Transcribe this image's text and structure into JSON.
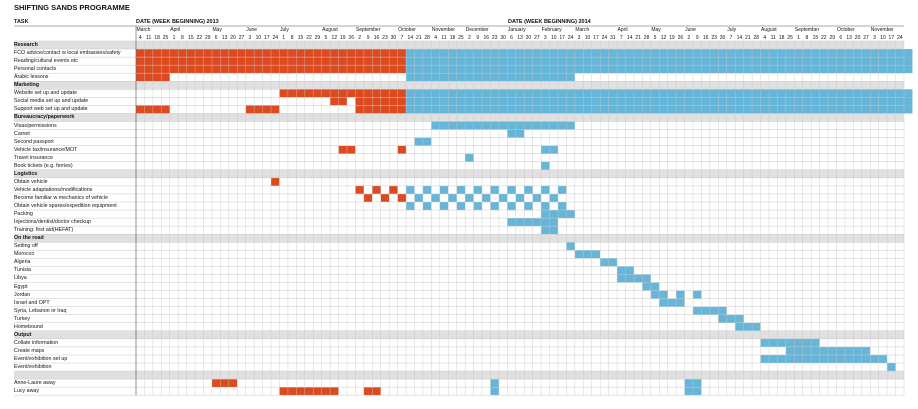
{
  "title": "SHIFTING SANDS PROGRAMME",
  "task_header": "TASK",
  "year_headers": [
    "DATE (WEEK BEGINNING) 2013",
    "DATE (WEEK BEGINNING) 2014"
  ],
  "colors": {
    "y2013": "#dd4a1f",
    "y2014": "#66b6d9",
    "section_bg": "#e0e0e0",
    "grid": "#c8c8c8"
  },
  "chart_data": {
    "type": "gantt",
    "months": [
      {
        "name": "March",
        "weeks": [
          "4",
          "11",
          "18",
          "25"
        ]
      },
      {
        "name": "April",
        "weeks": [
          "1",
          "8",
          "15",
          "22",
          "29"
        ]
      },
      {
        "name": "May",
        "weeks": [
          "6",
          "13",
          "20",
          "27"
        ]
      },
      {
        "name": "June",
        "weeks": [
          "3",
          "10",
          "17",
          "24"
        ]
      },
      {
        "name": "July",
        "weeks": [
          "1",
          "8",
          "15",
          "22",
          "29"
        ]
      },
      {
        "name": "August",
        "weeks": [
          "5",
          "12",
          "19",
          "26"
        ]
      },
      {
        "name": "September",
        "weeks": [
          "2",
          "9",
          "16",
          "23",
          "30"
        ]
      },
      {
        "name": "October",
        "weeks": [
          "7",
          "14",
          "21",
          "28"
        ]
      },
      {
        "name": "November",
        "weeks": [
          "4",
          "11",
          "18",
          "25"
        ]
      },
      {
        "name": "December",
        "weeks": [
          "2",
          "9",
          "16",
          "23",
          "30"
        ]
      },
      {
        "name": "January",
        "weeks": [
          "6",
          "13",
          "20",
          "27"
        ]
      },
      {
        "name": "February",
        "weeks": [
          "3",
          "10",
          "17",
          "24"
        ]
      },
      {
        "name": "March",
        "weeks": [
          "3",
          "10",
          "17",
          "24",
          "31"
        ]
      },
      {
        "name": "April",
        "weeks": [
          "7",
          "14",
          "21",
          "28"
        ]
      },
      {
        "name": "May",
        "weeks": [
          "5",
          "12",
          "19",
          "26"
        ]
      },
      {
        "name": "June",
        "weeks": [
          "2",
          "9",
          "16",
          "23",
          "30"
        ]
      },
      {
        "name": "July",
        "weeks": [
          "7",
          "14",
          "21",
          "28"
        ]
      },
      {
        "name": "August",
        "weeks": [
          "4",
          "11",
          "18",
          "25"
        ]
      },
      {
        "name": "September",
        "weeks": [
          "1",
          "8",
          "15",
          "22",
          "29"
        ]
      },
      {
        "name": "October",
        "weeks": [
          "6",
          "13",
          "20",
          "27"
        ]
      },
      {
        "name": "November",
        "weeks": [
          "3",
          "10",
          "17",
          "24"
        ]
      }
    ],
    "year_split_week_index": 32,
    "sections": [
      {
        "name": "Research",
        "tasks": [
          {
            "name": "FCO advice/contact w local embassies/safety",
            "bars": [
              [
                0,
                92
              ]
            ]
          },
          {
            "name": "Reading/cultural events etc",
            "bars": [
              [
                0,
                92
              ]
            ]
          },
          {
            "name": "Personal contacts",
            "bars": [
              [
                0,
                92
              ]
            ]
          },
          {
            "name": "Arabic lessons",
            "bars": [
              [
                0,
                4
              ],
              [
                32,
                52
              ]
            ]
          }
        ]
      },
      {
        "name": "Marketing",
        "tasks": [
          {
            "name": "Website set up and update",
            "bars": [
              [
                17,
                92
              ]
            ]
          },
          {
            "name": "Social media set up and update",
            "bars": [
              [
                23,
                25
              ],
              [
                26,
                92
              ]
            ]
          },
          {
            "name": "Support web set up and update",
            "bars": [
              [
                0,
                4
              ],
              [
                13,
                17
              ],
              [
                26,
                92
              ]
            ]
          }
        ]
      },
      {
        "name": "Bureaucracy/paperwork",
        "tasks": [
          {
            "name": "Visas/permissions",
            "bars": [
              [
                35,
                52
              ]
            ]
          },
          {
            "name": "Carnet",
            "bars": [
              [
                44,
                46
              ]
            ]
          },
          {
            "name": "Second passport",
            "bars": [
              [
                33,
                35
              ]
            ]
          },
          {
            "name": "Vehicle tax/insurance/MOT",
            "bars": [
              [
                24,
                26
              ],
              [
                31,
                32
              ],
              [
                48,
                50
              ]
            ]
          },
          {
            "name": "Travel insurance",
            "bars": [
              [
                39,
                40
              ]
            ]
          },
          {
            "name": "Book tickets (e.g. ferries)",
            "bars": [
              [
                48,
                49
              ]
            ]
          }
        ]
      },
      {
        "name": "Logistics",
        "tasks": [
          {
            "name": "Obtain vehicle",
            "bars": [
              [
                16,
                17
              ]
            ]
          },
          {
            "name": "Vehicle adaptations/modifications",
            "bars": [
              [
                26,
                27
              ],
              [
                28,
                29
              ],
              [
                30,
                31
              ],
              [
                32,
                33
              ],
              [
                34,
                35
              ],
              [
                36,
                37
              ],
              [
                38,
                39
              ],
              [
                40,
                41
              ],
              [
                42,
                43
              ],
              [
                44,
                45
              ],
              [
                46,
                47
              ],
              [
                48,
                49
              ],
              [
                50,
                51
              ]
            ]
          },
          {
            "name": "Become familiar w mechanics of vehicle",
            "bars": [
              [
                27,
                28
              ],
              [
                29,
                30
              ],
              [
                31,
                32
              ],
              [
                33,
                34
              ],
              [
                35,
                36
              ],
              [
                37,
                38
              ],
              [
                39,
                40
              ],
              [
                41,
                42
              ],
              [
                43,
                44
              ],
              [
                45,
                46
              ],
              [
                47,
                48
              ],
              [
                49,
                50
              ]
            ]
          },
          {
            "name": "Obtain vehicle spares/expedition equipment",
            "bars": [
              [
                32,
                33
              ],
              [
                34,
                35
              ],
              [
                36,
                37
              ],
              [
                38,
                39
              ],
              [
                40,
                41
              ],
              [
                42,
                43
              ],
              [
                44,
                45
              ],
              [
                46,
                47
              ],
              [
                48,
                49
              ],
              [
                50,
                51
              ]
            ]
          },
          {
            "name": "Packing",
            "bars": [
              [
                48,
                52
              ]
            ]
          },
          {
            "name": "Injections/dentist/doctor checkup",
            "bars": [
              [
                44,
                50
              ]
            ]
          },
          {
            "name": "Training: first aid(HEFAT)",
            "bars": [
              [
                48,
                50
              ]
            ]
          }
        ]
      },
      {
        "name": "On the road",
        "tasks": [
          {
            "name": "Setting off",
            "bars": [
              [
                51,
                52
              ]
            ]
          },
          {
            "name": "Morocco",
            "bars": [
              [
                52,
                55
              ]
            ]
          },
          {
            "name": "Algeria",
            "bars": [
              [
                55,
                57
              ]
            ]
          },
          {
            "name": "Tunisia",
            "bars": [
              [
                57,
                59
              ]
            ]
          },
          {
            "name": "Libya",
            "bars": [
              [
                57,
                61
              ]
            ]
          },
          {
            "name": "Egypt",
            "bars": [
              [
                60,
                62
              ]
            ]
          },
          {
            "name": "Jordan",
            "bars": [
              [
                61,
                63
              ],
              [
                64,
                65
              ],
              [
                66,
                67
              ]
            ]
          },
          {
            "name": "Israel and OPT",
            "bars": [
              [
                62,
                65
              ]
            ]
          },
          {
            "name": "Syria, Lebanon or Iraq",
            "bars": [
              [
                66,
                70
              ]
            ]
          },
          {
            "name": "Turkey",
            "bars": [
              [
                69,
                72
              ]
            ]
          },
          {
            "name": "Homebound",
            "bars": [
              [
                71,
                74
              ]
            ]
          }
        ]
      },
      {
        "name": "Output",
        "tasks": [
          {
            "name": "Collate information",
            "bars": [
              [
                74,
                81
              ]
            ]
          },
          {
            "name": "Create maps",
            "bars": [
              [
                77,
                87
              ]
            ]
          },
          {
            "name": "Event/exhibition set up",
            "bars": [
              [
                74,
                89
              ]
            ]
          },
          {
            "name": "Event/exhibition",
            "bars": [
              [
                89,
                90
              ]
            ]
          }
        ]
      },
      {
        "name": "",
        "tasks": [
          {
            "name": "Anne-Laure away",
            "bars": [
              [
                9,
                12
              ],
              [
                42,
                43
              ],
              [
                65,
                67
              ]
            ]
          },
          {
            "name": "Lucy away",
            "bars": [
              [
                17,
                24
              ],
              [
                27,
                29
              ],
              [
                42,
                43
              ],
              [
                65,
                67
              ]
            ]
          }
        ]
      }
    ]
  }
}
